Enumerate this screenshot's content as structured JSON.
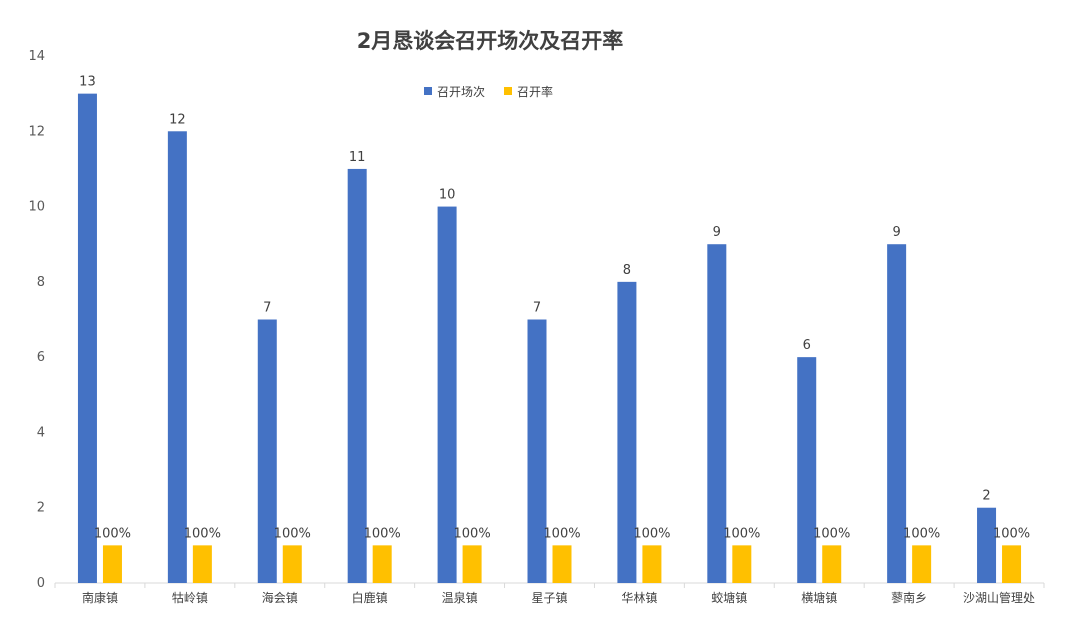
{
  "chart_data": {
    "type": "bar",
    "title": "2月恳谈会召开场次及召开率",
    "categories": [
      "南康镇",
      "牯岭镇",
      "海会镇",
      "白鹿镇",
      "温泉镇",
      "星子镇",
      "华林镇",
      "蛟塘镇",
      "横塘镇",
      "蓼南乡",
      "沙湖山管理处"
    ],
    "ylim": [
      0,
      14
    ],
    "yticks": [
      "0",
      "2",
      "4",
      "6",
      "8",
      "10",
      "12",
      "14"
    ],
    "legend_position": "top-center",
    "grid": false,
    "series": [
      {
        "name": "召开场次",
        "color": "#4472C4",
        "values": [
          13,
          12,
          7,
          11,
          10,
          7,
          8,
          9,
          6,
          9,
          2
        ],
        "labels": [
          "13",
          "12",
          "7",
          "11",
          "10",
          "7",
          "8",
          "9",
          "6",
          "9",
          "2"
        ]
      },
      {
        "name": "召开率",
        "color": "#FFC000",
        "values": [
          1,
          1,
          1,
          1,
          1,
          1,
          1,
          1,
          1,
          1,
          1
        ],
        "labels": [
          "100%",
          "100%",
          "100%",
          "100%",
          "100%",
          "100%",
          "100%",
          "100%",
          "100%",
          "100%",
          "100%"
        ]
      }
    ]
  }
}
